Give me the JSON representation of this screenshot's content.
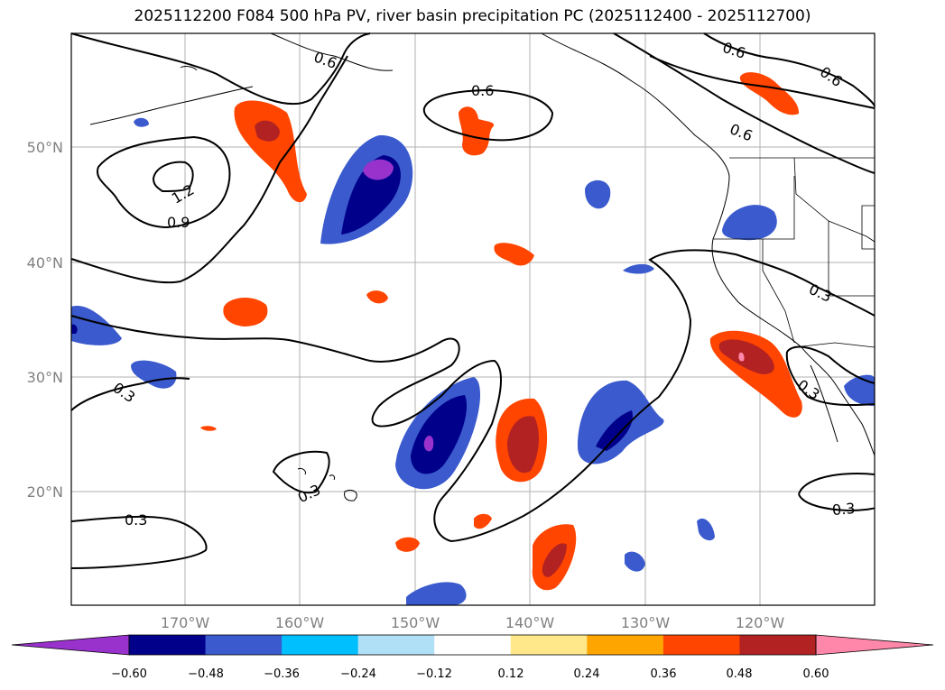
{
  "title": "2025112200 F084 500 hPa PV, river basin precipitation PC (2025112400 - 2025112700)",
  "lat_labels": [
    "50°N",
    "40°N",
    "30°N",
    "20°N"
  ],
  "lon_labels": [
    "170°W",
    "160°W",
    "150°W",
    "140°W",
    "130°W",
    "120°W"
  ],
  "contour_labels": [
    "0.6",
    "0.6",
    "0.6",
    "0.6",
    "0.6",
    "1.2",
    "0.9",
    "0.3",
    "0.3",
    "0.3",
    "0.3",
    "0.3",
    "0.3"
  ],
  "colorbar": {
    "ticks": [
      "−0.60",
      "−0.48",
      "−0.36",
      "−0.24",
      "−0.12",
      "0.12",
      "0.24",
      "0.36",
      "0.48",
      "0.60"
    ],
    "colors": [
      "#9932cc",
      "#00008b",
      "#3a5acd",
      "#00bfff",
      "#b0e0f5",
      "#ffffff",
      "#ffe88a",
      "#ffa500",
      "#ff4500",
      "#b22222",
      "#ff88aa"
    ]
  }
}
